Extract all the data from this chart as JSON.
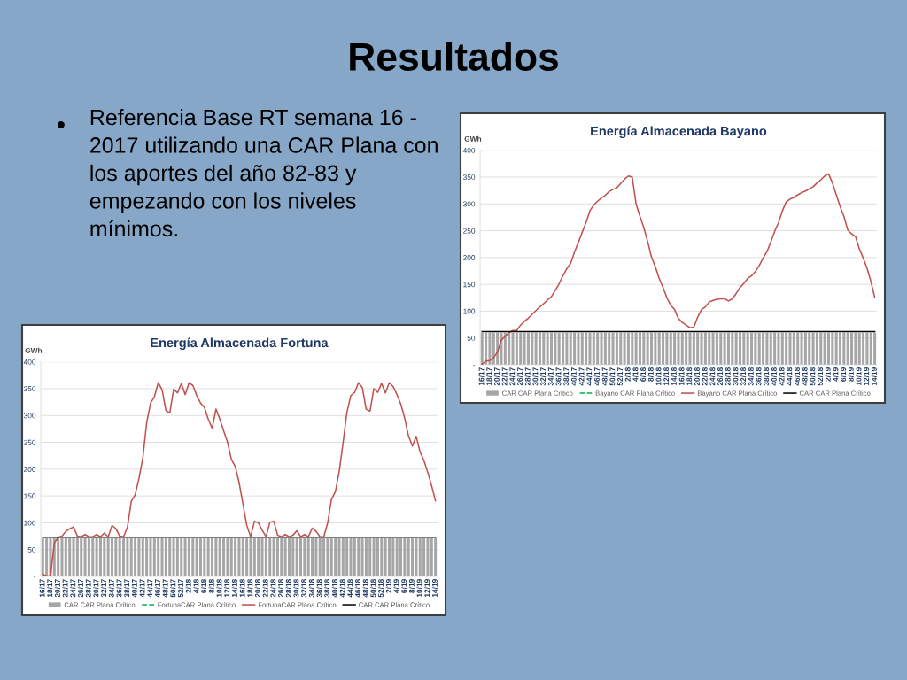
{
  "chart_data": [
    {
      "type": "other",
      "title": "Resultados",
      "annotations": [
        "Referencia Base RT semana 16 - 2017 utilizando una CAR Plana con los aportes del año 82-83 y empezando con los niveles mínimos."
      ]
    },
    {
      "type": "bar",
      "title": "Energía Almacenada Bayano",
      "ylabel": "GWh",
      "categories": [
        "16/17",
        null,
        "18/17",
        null,
        "20/17",
        null,
        "22/17",
        null,
        "24/17",
        null,
        "26/17",
        null,
        "28/17",
        null,
        "30/17",
        null,
        "32/17",
        null,
        "34/17",
        null,
        "36/17",
        null,
        "38/17",
        null,
        "40/17",
        null,
        "42/17",
        null,
        "44/17",
        null,
        "46/17",
        null,
        "48/17",
        null,
        "50/17",
        null,
        "52/17",
        null,
        "2/18",
        null,
        "4/18",
        null,
        "6/18",
        null,
        "8/18",
        null,
        "10/18",
        null,
        "12/18",
        null,
        "14/18",
        null,
        "16/18",
        null,
        "18/18",
        null,
        "20/18",
        null,
        "22/18",
        null,
        "24/18",
        null,
        "26/18",
        null,
        "28/18",
        null,
        "30/18",
        null,
        "32/18",
        null,
        "34/18",
        null,
        "36/18",
        null,
        "38/18",
        null,
        "40/18",
        null,
        "42/18",
        null,
        "44/18",
        null,
        "46/18",
        null,
        "48/18",
        null,
        "50/18",
        null,
        "52/18",
        null,
        "2/19",
        null,
        "4/19",
        null,
        "6/19",
        null,
        "8/19",
        null,
        "10/19",
        null,
        "12/19",
        null,
        "14/19"
      ],
      "series": [
        {
          "name": "CAR CAR Plana Crítico",
          "type": "bar",
          "color": "#a6a6a6",
          "values": [
            60,
            60,
            60,
            60,
            60,
            60,
            60,
            60,
            60,
            60,
            60,
            60,
            60,
            60,
            60,
            60,
            60,
            60,
            60,
            60,
            60,
            60,
            60,
            60,
            60,
            60,
            60,
            60,
            60,
            60,
            60,
            60,
            60,
            60,
            60,
            60,
            60,
            60,
            60,
            60,
            60,
            60,
            60,
            60,
            60,
            60,
            60,
            60,
            60,
            60,
            60,
            60,
            60,
            60,
            60,
            60,
            60,
            60,
            60,
            60,
            60,
            60,
            60,
            60,
            60,
            60,
            60,
            60,
            60,
            60,
            60,
            60,
            60,
            60,
            60,
            60,
            60,
            60,
            60,
            60,
            60,
            60,
            60,
            60,
            60,
            60,
            60,
            60,
            60,
            60,
            60,
            60,
            60,
            60,
            60,
            60,
            60,
            60,
            60,
            60,
            60,
            60,
            60
          ]
        },
        {
          "name": "Bayano CAR Plana Crítico",
          "type": "line",
          "color": "#00b050",
          "line_style": "dashed",
          "values": [
            null,
            null,
            null,
            null,
            null,
            null,
            null,
            null,
            null,
            null,
            null,
            null,
            null,
            null,
            null,
            null,
            null,
            null,
            null,
            null,
            null,
            null,
            null,
            null,
            null,
            null,
            null,
            null,
            null,
            null,
            null,
            null,
            null,
            null,
            null,
            null,
            null,
            null,
            null,
            null,
            null,
            null,
            null,
            null,
            null,
            null,
            null,
            null,
            null,
            null,
            null,
            null,
            null,
            null,
            null,
            null,
            null,
            null,
            null,
            null,
            null,
            null,
            null,
            null,
            null,
            null,
            null,
            null,
            null,
            null,
            null,
            null,
            null,
            null,
            null,
            null,
            null,
            null,
            null,
            null,
            null,
            null,
            null,
            null,
            null,
            null,
            null,
            null,
            null,
            null,
            null,
            null,
            null,
            null,
            null,
            null,
            null,
            null,
            null,
            null,
            null,
            null,
            null
          ]
        },
        {
          "name": "Bayano CAR Plana Crítico",
          "type": "line",
          "color": "#c0504d",
          "values": [
            1,
            7,
            8,
            13,
            24,
            46,
            53,
            60,
            64,
            64,
            74,
            81,
            87,
            94,
            101,
            108,
            114,
            121,
            127,
            139,
            151,
            166,
            179,
            189,
            210,
            228,
            247,
            265,
            287,
            298,
            305,
            311,
            316,
            323,
            327,
            330,
            338,
            346,
            352,
            350,
            300,
            277,
            256,
            230,
            201,
            183,
            161,
            144,
            125,
            111,
            103,
            86,
            79,
            74,
            69,
            70,
            89,
            103,
            108,
            117,
            120,
            122,
            123,
            123,
            119,
            123,
            133,
            144,
            152,
            161,
            166,
            174,
            185,
            199,
            211,
            229,
            249,
            265,
            287,
            304,
            309,
            312,
            317,
            321,
            324,
            328,
            332,
            339,
            345,
            352,
            356,
            339,
            317,
            295,
            276,
            251,
            244,
            239,
            216,
            199,
            180,
            155,
            125
          ]
        },
        {
          "name": "CAR CAR Plana Crítico",
          "type": "line",
          "color": "#000000",
          "values": [
            62,
            62,
            62,
            62,
            62,
            62,
            62,
            62,
            62,
            62,
            62,
            62,
            62,
            62,
            62,
            62,
            62,
            62,
            62,
            62,
            62,
            62,
            62,
            62,
            62,
            62,
            62,
            62,
            62,
            62,
            62,
            62,
            62,
            62,
            62,
            62,
            62,
            62,
            62,
            62,
            62,
            62,
            62,
            62,
            62,
            62,
            62,
            62,
            62,
            62,
            62,
            62,
            62,
            62,
            62,
            62,
            62,
            62,
            62,
            62,
            62,
            62,
            62,
            62,
            62,
            62,
            62,
            62,
            62,
            62,
            62,
            62,
            62,
            62,
            62,
            62,
            62,
            62,
            62,
            62,
            62,
            62,
            62,
            62,
            62,
            62,
            62,
            62,
            62,
            62,
            62,
            62,
            62,
            62,
            62,
            62,
            62,
            62,
            62,
            62,
            62,
            62,
            62
          ]
        }
      ],
      "ylim": [
        0,
        400
      ],
      "yticks": [
        {
          "value": 0,
          "label": "-"
        },
        50,
        100,
        150,
        200,
        250,
        300,
        350,
        400
      ],
      "grid": "y",
      "legend": "bottom"
    },
    {
      "type": "bar",
      "title": "Energía Almacenada Fortuna",
      "ylabel": "GWh",
      "categories": [
        "16/17",
        null,
        "18/17",
        null,
        "20/17",
        null,
        "22/17",
        null,
        "24/17",
        null,
        "26/17",
        null,
        "28/17",
        null,
        "30/17",
        null,
        "32/17",
        null,
        "34/17",
        null,
        "36/17",
        null,
        "38/17",
        null,
        "40/17",
        null,
        "42/17",
        null,
        "44/17",
        null,
        "46/17",
        null,
        "48/17",
        null,
        "50/17",
        null,
        "52/17",
        null,
        "2/18",
        null,
        "4/18",
        null,
        "6/18",
        null,
        "8/18",
        null,
        "10/18",
        null,
        "12/18",
        null,
        "14/18",
        null,
        "16/18",
        null,
        "18/18",
        null,
        "20/18",
        null,
        "22/18",
        null,
        "24/18",
        null,
        "26/18",
        null,
        "28/18",
        null,
        "30/18",
        null,
        "32/18",
        null,
        "34/18",
        null,
        "36/18",
        null,
        "38/18",
        null,
        "40/18",
        null,
        "42/18",
        null,
        "44/18",
        null,
        "46/18",
        null,
        "48/18",
        null,
        "50/18",
        null,
        "52/18",
        null,
        "2/19",
        null,
        "4/19",
        null,
        "6/19",
        null,
        "8/19",
        null,
        "10/19",
        null,
        "12/19",
        null,
        "14/19"
      ],
      "series": [
        {
          "name": "CAR CAR Plana Crítico",
          "type": "bar",
          "color": "#a6a6a6",
          "values": [
            71,
            71,
            71,
            71,
            71,
            71,
            71,
            71,
            71,
            71,
            71,
            71,
            71,
            71,
            71,
            71,
            71,
            71,
            71,
            71,
            71,
            71,
            71,
            71,
            71,
            71,
            71,
            71,
            71,
            71,
            71,
            71,
            71,
            71,
            71,
            71,
            71,
            71,
            71,
            71,
            71,
            71,
            71,
            71,
            71,
            71,
            71,
            71,
            71,
            71,
            71,
            71,
            71,
            71,
            71,
            71,
            71,
            71,
            71,
            71,
            71,
            71,
            71,
            71,
            71,
            71,
            71,
            71,
            71,
            71,
            71,
            71,
            71,
            71,
            71,
            71,
            71,
            71,
            71,
            71,
            71,
            71,
            71,
            71,
            71,
            71,
            71,
            71,
            71,
            71,
            71,
            71,
            71,
            71,
            71,
            71,
            71,
            71,
            71,
            71,
            71,
            71,
            71
          ]
        },
        {
          "name": "FortunaCAR Plana Crítico",
          "type": "line",
          "color": "#00b050",
          "line_style": "dashed",
          "values": [
            null,
            null,
            null,
            null,
            null,
            null,
            null,
            null,
            null,
            null,
            null,
            null,
            null,
            null,
            null,
            null,
            null,
            null,
            null,
            null,
            null,
            null,
            null,
            null,
            null,
            null,
            null,
            null,
            null,
            null,
            null,
            null,
            null,
            null,
            null,
            null,
            null,
            null,
            null,
            null,
            null,
            null,
            null,
            null,
            null,
            null,
            null,
            null,
            null,
            null,
            null,
            null,
            null,
            null,
            null,
            null,
            null,
            null,
            null,
            null,
            null,
            null,
            null,
            null,
            null,
            null,
            null,
            null,
            null,
            null,
            null,
            null,
            null,
            null,
            null,
            null,
            null,
            null,
            null,
            null,
            null,
            null,
            null,
            null,
            null,
            null,
            null,
            null,
            null,
            null,
            null,
            null,
            null,
            null,
            null,
            null,
            null,
            null,
            null,
            null,
            null,
            null,
            null
          ]
        },
        {
          "name": "FortunaCAR Plana Crítico",
          "type": "line",
          "color": "#c0504d",
          "values": [
            4,
            1,
            1,
            62,
            73,
            75,
            84,
            89,
            92,
            75,
            74,
            78,
            74,
            74,
            78,
            74,
            81,
            74,
            95,
            89,
            75,
            74,
            92,
            140,
            152,
            183,
            221,
            287,
            323,
            335,
            361,
            348,
            309,
            305,
            349,
            342,
            360,
            339,
            361,
            356,
            337,
            323,
            315,
            293,
            276,
            312,
            293,
            271,
            250,
            218,
            205,
            175,
            135,
            95,
            74,
            103,
            100,
            86,
            74,
            101,
            103,
            77,
            74,
            78,
            74,
            77,
            85,
            74,
            78,
            74,
            90,
            84,
            74,
            74,
            100,
            144,
            158,
            196,
            249,
            306,
            337,
            343,
            361,
            352,
            312,
            308,
            350,
            343,
            360,
            342,
            361,
            354,
            339,
            321,
            295,
            262,
            243,
            261,
            232,
            216,
            194,
            169,
            141
          ]
        },
        {
          "name": "CAR CAR Plana Crítico",
          "type": "line",
          "color": "#000000",
          "values": [
            73,
            73,
            73,
            73,
            73,
            73,
            73,
            73,
            73,
            73,
            73,
            73,
            73,
            73,
            73,
            73,
            73,
            73,
            73,
            73,
            73,
            73,
            73,
            73,
            73,
            73,
            73,
            73,
            73,
            73,
            73,
            73,
            73,
            73,
            73,
            73,
            73,
            73,
            73,
            73,
            73,
            73,
            73,
            73,
            73,
            73,
            73,
            73,
            73,
            73,
            73,
            73,
            73,
            73,
            73,
            73,
            73,
            73,
            73,
            73,
            73,
            73,
            73,
            73,
            73,
            73,
            73,
            73,
            73,
            73,
            73,
            73,
            73,
            73,
            73,
            73,
            73,
            73,
            73,
            73,
            73,
            73,
            73,
            73,
            73,
            73,
            73,
            73,
            73,
            73,
            73,
            73,
            73,
            73,
            73,
            73,
            73,
            73,
            73,
            73,
            73,
            73,
            73
          ]
        }
      ],
      "ylim": [
        0,
        400
      ],
      "yticks": [
        {
          "value": 0,
          "label": "-"
        },
        50,
        100,
        150,
        200,
        250,
        300,
        350,
        400
      ],
      "grid": "y",
      "legend": "bottom"
    }
  ]
}
